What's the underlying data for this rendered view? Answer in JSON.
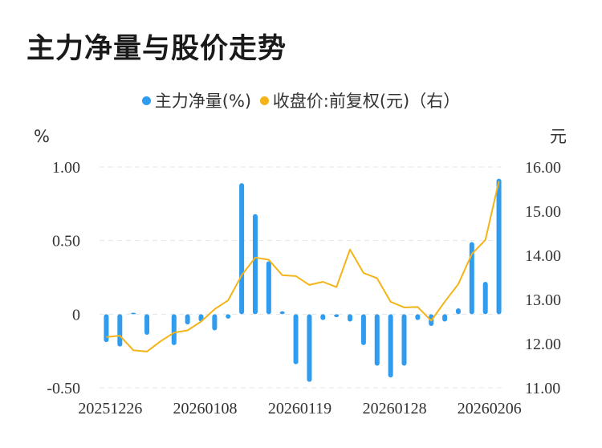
{
  "title": "主力净量与股价走势",
  "colors": {
    "bar": "#2f9cef",
    "line": "#f4b417",
    "grid": "#e6e6e6"
  },
  "chart_data": {
    "type": "bar+line",
    "legend": [
      {
        "name": "主力净量(%)",
        "color": "#2f9cef",
        "shape": "dot"
      },
      {
        "name": "收盘价:前复权(元)（右）",
        "color": "#f4b417",
        "shape": "dot"
      }
    ],
    "legend_placement": "top-center",
    "left_axis": {
      "unit": "%",
      "ylim": [
        -0.5,
        1.0
      ],
      "ticks": [
        "1.00",
        "0.50",
        "0",
        "-0.50"
      ],
      "tick_values": [
        1.0,
        0.5,
        0,
        -0.5
      ]
    },
    "right_axis": {
      "unit": "元",
      "ylim": [
        11.0,
        16.0
      ],
      "ticks": [
        "16.00",
        "15.00",
        "14.00",
        "13.00",
        "12.00",
        "11.00"
      ],
      "tick_values": [
        16,
        15,
        14,
        13,
        12,
        11
      ]
    },
    "x_tick_labels": [
      "20251226",
      "20260108",
      "20260119",
      "20260128",
      "20260206"
    ],
    "x_tick_index": [
      0,
      7,
      14,
      21,
      28
    ],
    "grid": "horizontal dashed",
    "series": [
      {
        "name": "主力净量(%)",
        "type": "bar",
        "values": [
          -0.19,
          -0.22,
          0.01,
          -0.14,
          0.0,
          -0.21,
          -0.07,
          -0.05,
          -0.11,
          -0.03,
          0.89,
          0.68,
          0.36,
          0.02,
          -0.34,
          -0.46,
          -0.04,
          -0.02,
          -0.05,
          -0.21,
          -0.35,
          -0.43,
          -0.35,
          -0.04,
          -0.08,
          -0.05,
          0.04,
          0.49,
          0.22,
          0.92
        ]
      },
      {
        "name": "收盘价:前复权(元)",
        "type": "line",
        "values": [
          12.15,
          12.18,
          11.85,
          11.82,
          12.05,
          12.25,
          12.3,
          12.5,
          12.78,
          12.98,
          13.55,
          13.95,
          13.9,
          13.55,
          13.53,
          13.33,
          13.4,
          13.28,
          14.13,
          13.6,
          13.48,
          12.95,
          12.82,
          12.83,
          12.52,
          12.95,
          13.35,
          14.03,
          14.35,
          15.68
        ]
      }
    ]
  }
}
